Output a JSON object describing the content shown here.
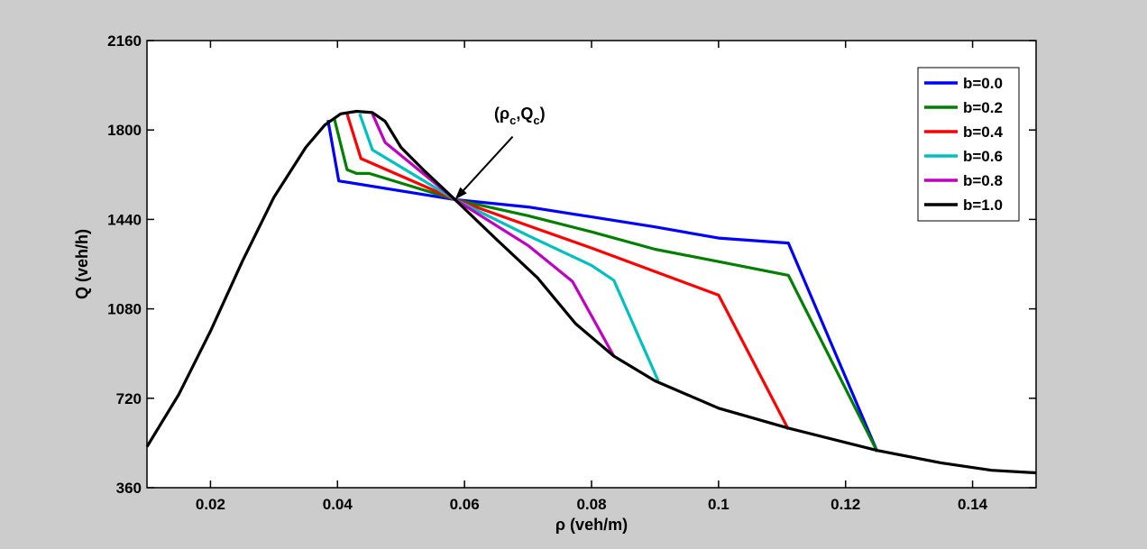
{
  "chart_data": {
    "type": "line",
    "title": "",
    "xlabel": "ρ (veh/m)",
    "ylabel": "Q (veh/h)",
    "xlim": [
      0.01,
      0.15
    ],
    "ylim": [
      360,
      2160
    ],
    "x_ticks": [
      0.02,
      0.04,
      0.06,
      0.08,
      0.1,
      0.12,
      0.14
    ],
    "x_tick_labels": [
      "0.02",
      "0.04",
      "0.06",
      "0.08",
      "0.1",
      "0.12",
      "0.14"
    ],
    "y_ticks": [
      360,
      720,
      1080,
      1440,
      1800,
      2160
    ],
    "y_tick_labels": [
      "360",
      "720",
      "1080",
      "1440",
      "1800",
      "2160"
    ],
    "grid": false,
    "legend_position": "top-right",
    "annotation": {
      "text_open": "(",
      "rho": "ρ",
      "sub": "c",
      "comma": ",",
      "q": "Q",
      "close": ")",
      "target": [
        0.0585,
        1520
      ],
      "text_anchor": [
        0.069,
        1875
      ]
    },
    "series": [
      {
        "name": "b=0.0",
        "color": "#0000ff",
        "x": [
          0.0385,
          0.0402,
          0.0585,
          0.07,
          0.08,
          0.09,
          0.1,
          0.111,
          0.125
        ],
        "y": [
          1840,
          1595,
          1520,
          1490,
          1450,
          1410,
          1365,
          1345,
          505
        ]
      },
      {
        "name": "b=0.2",
        "color": "#007f00",
        "x": [
          0.0395,
          0.0415,
          0.043,
          0.045,
          0.0585,
          0.07,
          0.08,
          0.09,
          0.1,
          0.111,
          0.125
        ],
        "y": [
          1845,
          1640,
          1625,
          1625,
          1520,
          1455,
          1390,
          1320,
          1270,
          1215,
          505
        ]
      },
      {
        "name": "b=0.4",
        "color": "#ff0000",
        "x": [
          0.0415,
          0.0437,
          0.0585,
          0.07,
          0.08,
          0.09,
          0.1,
          0.111
        ],
        "y": [
          1865,
          1685,
          1520,
          1415,
          1325,
          1230,
          1135,
          595
        ]
      },
      {
        "name": "b=0.6",
        "color": "#00bfbf",
        "x": [
          0.0435,
          0.0455,
          0.0585,
          0.07,
          0.08,
          0.0835,
          0.0905
        ],
        "y": [
          1865,
          1720,
          1520,
          1375,
          1255,
          1195,
          790
        ]
      },
      {
        "name": "b=0.8",
        "color": "#bf00bf",
        "x": [
          0.0455,
          0.0475,
          0.0585,
          0.07,
          0.077,
          0.0835
        ],
        "y": [
          1865,
          1750,
          1520,
          1335,
          1190,
          890
        ]
      },
      {
        "name": "b=1.0",
        "color": "#000000",
        "x": [
          0.01,
          0.015,
          0.02,
          0.025,
          0.03,
          0.035,
          0.038,
          0.0405,
          0.043,
          0.0455,
          0.0475,
          0.05,
          0.0535,
          0.0585,
          0.065,
          0.0715,
          0.0775,
          0.0835,
          0.09,
          0.1,
          0.111,
          0.125,
          0.135,
          0.143,
          0.15
        ],
        "y": [
          525,
          735,
          990,
          1270,
          1530,
          1730,
          1820,
          1865,
          1875,
          1870,
          1835,
          1730,
          1640,
          1520,
          1360,
          1205,
          1020,
          890,
          790,
          680,
          600,
          510,
          460,
          430,
          420
        ]
      }
    ]
  }
}
